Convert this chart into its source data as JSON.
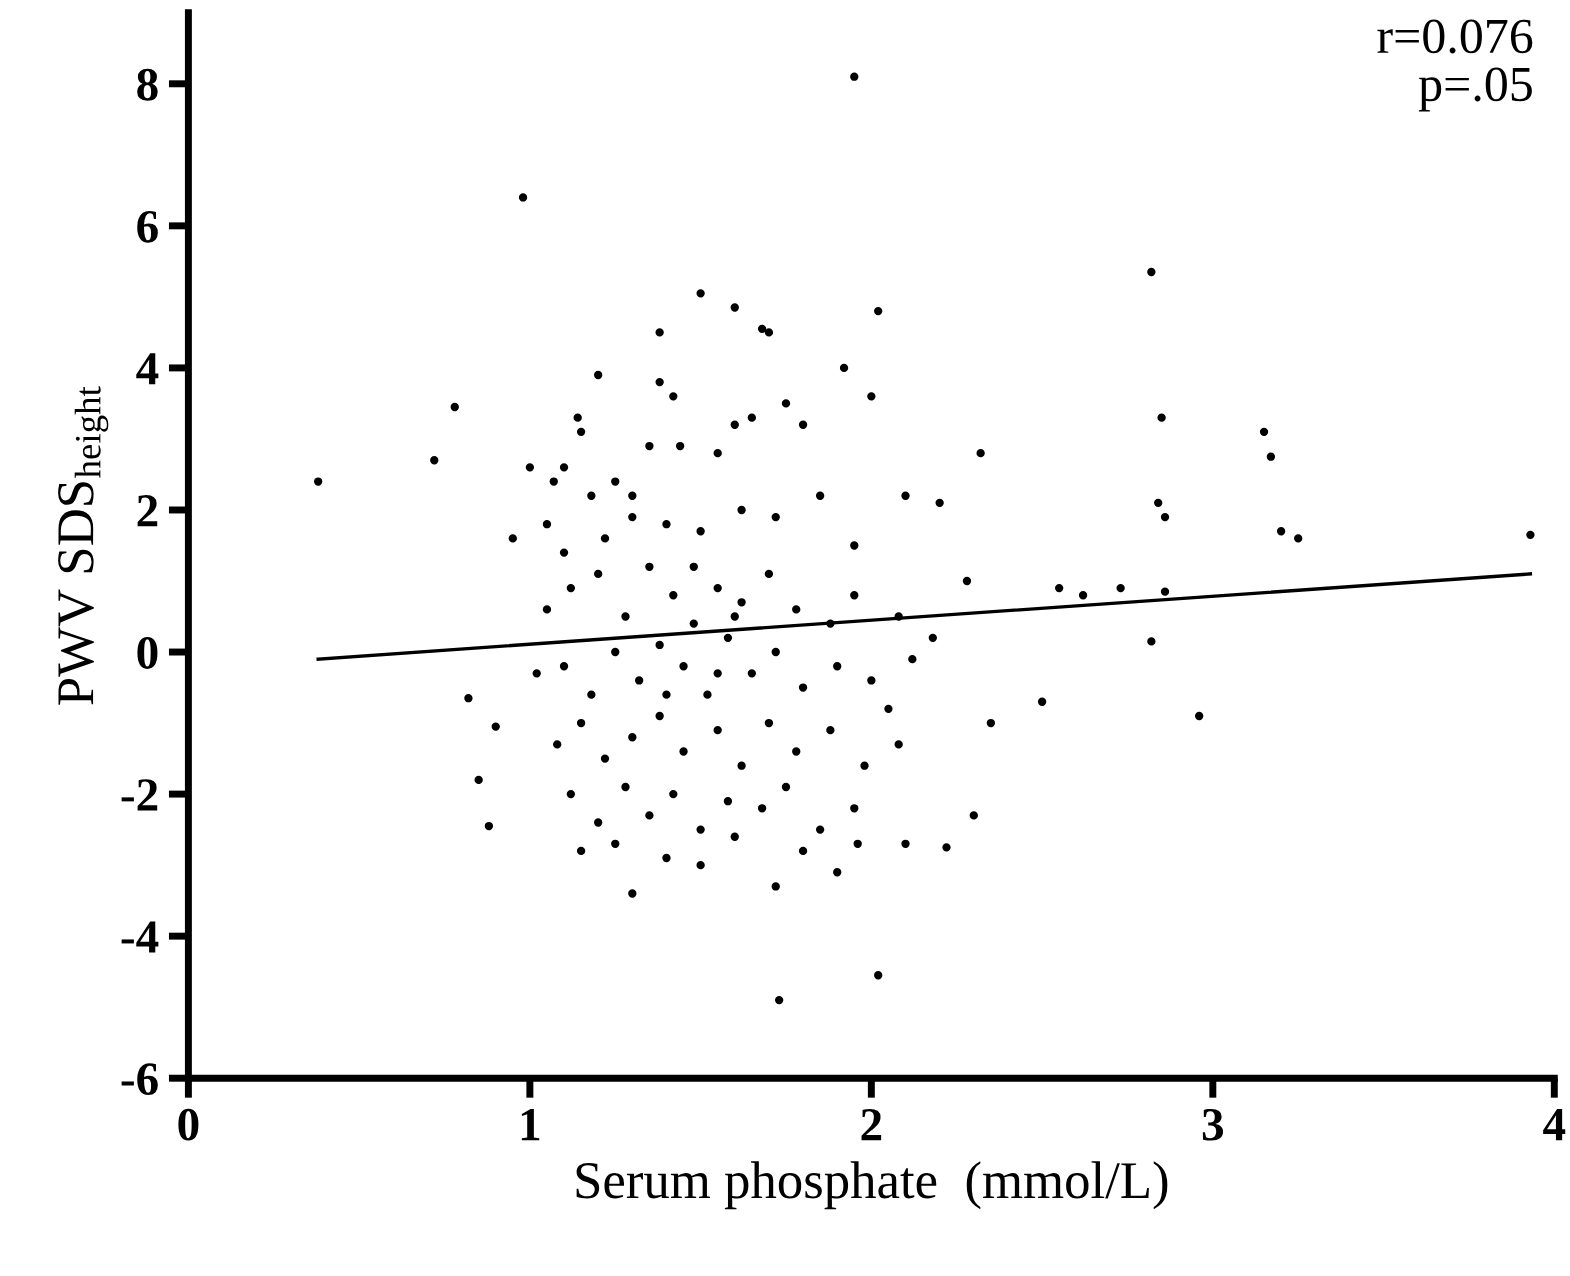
{
  "chart_data": {
    "type": "scatter",
    "xlabel": "Serum phosphate  (mmol/L)",
    "ylabel": "PWV SDS$_{height}$",
    "annotations": [
      "r=0.076",
      "p=.05"
    ],
    "xlim": [
      0,
      4
    ],
    "xticks": [
      0,
      1,
      2,
      3,
      4
    ],
    "ylim": [
      -6,
      9
    ],
    "yticks": [
      -6,
      -4,
      -2,
      0,
      2,
      4,
      6,
      8
    ],
    "grid": false,
    "legend": false,
    "marker": "circle",
    "series": [
      {
        "color": "#000000",
        "x": [
          0.38,
          0.72,
          0.78,
          0.82,
          0.85,
          0.88,
          0.9,
          0.95,
          0.98,
          1.0,
          1.95,
          2.82,
          3.93,
          1.73,
          2.02,
          2.96,
          3.15,
          3.17,
          3.2,
          3.25,
          2.82,
          2.86,
          2.84,
          2.85,
          2.86,
          2.5,
          2.55,
          2.62,
          2.73,
          2.3,
          2.32,
          2.22,
          2.28,
          2.35,
          2.2,
          2.1,
          2.05,
          2.0,
          1.92,
          2.02,
          1.5,
          1.6,
          1.68,
          1.7,
          1.38,
          1.38,
          1.42,
          1.2,
          1.14,
          1.15,
          1.07,
          1.1,
          1.6,
          1.65,
          1.75,
          1.8,
          1.35,
          1.44,
          1.55,
          1.3,
          1.25,
          1.18,
          1.05,
          1.1,
          1.22,
          1.3,
          1.4,
          1.5,
          1.62,
          1.72,
          1.85,
          1.95,
          2.1,
          1.05,
          1.12,
          1.2,
          1.28,
          1.35,
          1.42,
          1.48,
          1.55,
          1.62,
          1.7,
          1.78,
          1.88,
          1.95,
          2.08,
          2.18,
          1.02,
          1.1,
          1.18,
          1.25,
          1.32,
          1.38,
          1.45,
          1.52,
          1.58,
          1.65,
          1.72,
          1.8,
          1.9,
          2.0,
          2.12,
          1.08,
          1.15,
          1.22,
          1.3,
          1.38,
          1.45,
          1.55,
          1.62,
          1.7,
          1.78,
          1.88,
          1.98,
          2.08,
          1.12,
          1.2,
          1.28,
          1.35,
          1.42,
          1.5,
          1.58,
          1.68,
          1.75,
          1.85,
          1.95,
          1.15,
          1.3,
          1.25,
          1.4,
          1.5,
          1.6,
          1.72,
          1.8,
          1.9,
          1.96,
          1.55,
          1.48,
          1.4,
          1.6
        ],
        "values": [
          2.4,
          2.7,
          3.45,
          -0.65,
          -1.8,
          -2.45,
          -1.05,
          1.6,
          6.4,
          2.6,
          8.1,
          5.35,
          1.65,
          -4.9,
          -4.55,
          -0.9,
          3.1,
          2.75,
          1.7,
          1.6,
          0.15,
          0.85,
          2.1,
          3.3,
          1.9,
          -0.7,
          0.9,
          0.8,
          0.9,
          -2.3,
          2.8,
          -2.75,
          1.0,
          -1.0,
          2.1,
          -2.7,
          -0.8,
          3.6,
          4.0,
          4.8,
          5.05,
          4.85,
          4.55,
          4.5,
          4.5,
          3.8,
          3.6,
          3.9,
          3.3,
          3.1,
          2.4,
          2.6,
          3.2,
          3.3,
          3.5,
          3.2,
          2.9,
          2.9,
          2.8,
          2.2,
          2.4,
          2.2,
          1.8,
          1.4,
          1.6,
          1.9,
          1.8,
          1.7,
          2.0,
          1.9,
          2.2,
          1.5,
          2.2,
          0.6,
          0.9,
          1.1,
          0.5,
          1.2,
          0.8,
          1.2,
          0.9,
          0.7,
          1.1,
          0.6,
          0.4,
          0.8,
          0.5,
          0.2,
          -0.3,
          -0.2,
          -0.6,
          0.0,
          -0.4,
          0.1,
          -0.2,
          -0.6,
          0.2,
          -0.3,
          0.0,
          -0.5,
          -0.2,
          -0.4,
          -0.1,
          -1.3,
          -1.0,
          -1.5,
          -1.2,
          -0.9,
          -1.4,
          -1.1,
          -1.6,
          -1.0,
          -1.4,
          -1.1,
          -1.6,
          -1.3,
          -2.0,
          -2.4,
          -1.9,
          -2.3,
          -2.0,
          -2.5,
          -2.1,
          -2.2,
          -1.9,
          -2.5,
          -2.2,
          -2.8,
          -3.4,
          -2.7,
          -2.9,
          -3.0,
          -2.6,
          -3.3,
          -2.8,
          -3.1,
          -2.7,
          -0.3,
          0.4,
          -0.6,
          0.5
        ]
      },
      {
        "type": "line",
        "color": "#000000",
        "marker": "none",
        "line_style": "solid",
        "x": [
          0.38,
          3.93
        ],
        "values": [
          -0.1,
          1.1
        ]
      }
    ]
  }
}
